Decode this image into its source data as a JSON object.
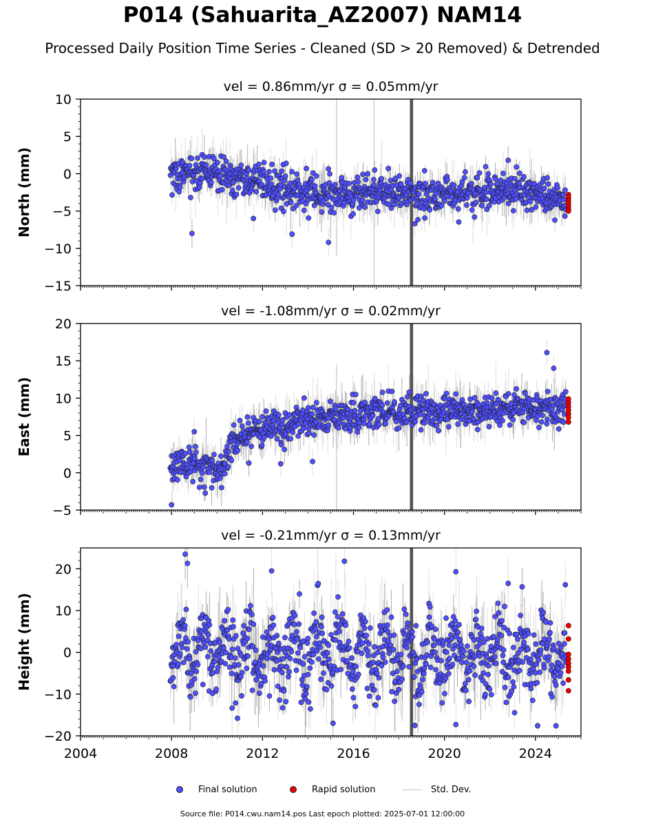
{
  "title": "P014 (Sahuarita_AZ2007) NAM14",
  "subtitle": "Processed Daily Position Time Series - Cleaned (SD > 20 Removed) & Detrended",
  "legend": {
    "final": "Final solution",
    "rapid": "Rapid solution",
    "stddev": "Std. Dev."
  },
  "source_note": "Source file: P014.cwu.nam14.pos  Last epoch plotted: 2025-07-01 12:00:00",
  "colors": {
    "final": "#4f4fff",
    "rapid": "#ee0000",
    "stddev_light": "#d0d0d0",
    "stddev_dark": "#555555",
    "marker_edge": "#1a1a1a"
  },
  "chart_data": [
    {
      "type": "scatter",
      "title": "vel = 0.86mm/yr   σ = 0.05mm/yr",
      "ylabel": "North (mm)",
      "xlabel": "",
      "xlim": [
        2004,
        2026
      ],
      "ylim": [
        -15,
        10
      ],
      "yticks": [
        10,
        5,
        0,
        -5,
        -10,
        -15
      ],
      "xticks": [
        2004,
        2008,
        2012,
        2016,
        2020,
        2024
      ],
      "show_xtick_labels": false,
      "start_year": 2007.95,
      "end_year": 2025.35,
      "trend_knots": [
        [
          2007.95,
          -0.2
        ],
        [
          2009.0,
          0.5
        ],
        [
          2010.2,
          0.2
        ],
        [
          2011.0,
          -0.6
        ],
        [
          2012.0,
          -1.0
        ],
        [
          2013.0,
          -2.2
        ],
        [
          2015.0,
          -2.6
        ],
        [
          2017.0,
          -2.5
        ],
        [
          2019.0,
          -2.4
        ],
        [
          2020.5,
          -2.7
        ],
        [
          2022.5,
          -2.2
        ],
        [
          2024.0,
          -2.5
        ],
        [
          2025.3,
          -3.8
        ]
      ],
      "scatter_sd": 1.2,
      "err_sd": 1.6,
      "outliers": [
        [
          2008.9,
          -8.0
        ],
        [
          2013.3,
          -8.1
        ],
        [
          2014.9,
          -9.2
        ],
        [
          2011.6,
          -6.0
        ],
        [
          2018.7,
          -6.7
        ],
        [
          2022.8,
          1.8
        ]
      ],
      "wide_err_bands": [
        [
          2018.55,
          -15,
          10
        ]
      ],
      "thin_err_lines": [
        [
          2015.25,
          -11.0,
          10
        ],
        [
          2016.9,
          -15,
          10
        ]
      ],
      "rapid": {
        "x": 2025.45,
        "y": [
          -2.8,
          -3.2,
          -3.6,
          -4.0,
          -4.4,
          -4.8,
          -5.0
        ]
      }
    },
    {
      "type": "scatter",
      "title": "vel = -1.08mm/yr   σ = 0.02mm/yr",
      "ylabel": "East (mm)",
      "xlabel": "",
      "xlim": [
        2004,
        2026
      ],
      "ylim": [
        -5,
        20
      ],
      "yticks": [
        20,
        15,
        10,
        5,
        0,
        -5
      ],
      "xticks": [
        2004,
        2008,
        2012,
        2016,
        2020,
        2024
      ],
      "show_xtick_labels": false,
      "start_year": 2007.95,
      "end_year": 2025.35,
      "trend_knots": [
        [
          2007.95,
          0.8
        ],
        [
          2009.0,
          1.2
        ],
        [
          2010.2,
          0.5
        ],
        [
          2010.6,
          3.5
        ],
        [
          2011.0,
          4.8
        ],
        [
          2012.0,
          6.0
        ],
        [
          2014.0,
          7.0
        ],
        [
          2016.0,
          7.8
        ],
        [
          2018.0,
          8.0
        ],
        [
          2020.0,
          8.2
        ],
        [
          2022.0,
          8.5
        ],
        [
          2024.0,
          8.6
        ],
        [
          2025.3,
          8.8
        ]
      ],
      "scatter_sd": 1.1,
      "err_sd": 1.5,
      "outliers": [
        [
          2008.0,
          -4.3
        ],
        [
          2024.5,
          16.1
        ],
        [
          2024.8,
          14.0
        ],
        [
          2009.0,
          5.5
        ],
        [
          2011.4,
          1.3
        ],
        [
          2012.8,
          1.2
        ],
        [
          2014.2,
          1.5
        ]
      ],
      "wide_err_bands": [
        [
          2018.55,
          -5,
          20
        ]
      ],
      "thin_err_lines": [
        [
          2015.25,
          -5,
          14.5
        ]
      ],
      "rapid": {
        "x": 2025.45,
        "y": [
          9.9,
          9.4,
          8.9,
          8.4,
          7.9,
          7.4,
          6.8
        ]
      }
    },
    {
      "type": "scatter",
      "title": "vel = -0.21mm/yr   σ = 0.13mm/yr",
      "ylabel": "Height (mm)",
      "xlabel": "",
      "xlim": [
        2004,
        2026
      ],
      "ylim": [
        -20,
        25
      ],
      "yticks": [
        20,
        10,
        0,
        -10,
        -20
      ],
      "xticks": [
        2004,
        2008,
        2012,
        2016,
        2020,
        2024
      ],
      "show_xtick_labels": true,
      "start_year": 2007.95,
      "end_year": 2025.35,
      "trend_knots": [
        [
          2007.95,
          0.0
        ],
        [
          2025.3,
          -1.0
        ]
      ],
      "seasonal_amp": 4.5,
      "scatter_sd": 4.2,
      "err_sd": 5.0,
      "outliers": [
        [
          2008.6,
          23.5
        ],
        [
          2008.7,
          21.3
        ],
        [
          2015.6,
          21.8
        ],
        [
          2012.4,
          19.5
        ],
        [
          2020.5,
          19.3
        ],
        [
          2015.1,
          -17.0
        ],
        [
          2018.7,
          -17.5
        ],
        [
          2020.5,
          -17.3
        ],
        [
          2024.9,
          -17.6
        ],
        [
          2010.9,
          -15.8
        ],
        [
          2022.8,
          16.5
        ]
      ],
      "wide_err_bands": [
        [
          2018.55,
          -20,
          25
        ]
      ],
      "thin_err_lines": [],
      "rapid": {
        "x": 2025.45,
        "y": [
          6.4,
          3.2,
          -0.5,
          -1.6,
          -2.6,
          -3.5,
          -4.5,
          -6.6,
          -9.2
        ]
      }
    }
  ]
}
